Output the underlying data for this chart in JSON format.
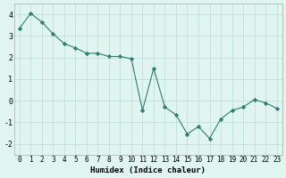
{
  "x": [
    0,
    1,
    2,
    3,
    4,
    5,
    6,
    7,
    8,
    9,
    10,
    11,
    12,
    13,
    14,
    15,
    16,
    17,
    18,
    19,
    20,
    21,
    22,
    23
  ],
  "y": [
    3.35,
    4.05,
    3.65,
    3.1,
    2.65,
    2.45,
    2.2,
    2.2,
    2.05,
    2.05,
    1.95,
    -0.45,
    1.5,
    -0.3,
    -0.65,
    -1.55,
    -1.2,
    -1.75,
    -0.85,
    -0.45,
    -0.3,
    0.05,
    -0.1,
    -0.35
  ],
  "line_color": "#2e7d6e",
  "marker": "D",
  "marker_size": 2.2,
  "bg_color": "#e0f5f0",
  "grid_color": "#b8ddd6",
  "xlabel": "Humidex (Indice chaleur)",
  "xlim": [
    -0.5,
    23.5
  ],
  "ylim": [
    -2.5,
    4.5
  ],
  "yticks": [
    -2,
    -1,
    0,
    1,
    2,
    3,
    4
  ],
  "xticks": [
    0,
    1,
    2,
    3,
    4,
    5,
    6,
    7,
    8,
    9,
    10,
    11,
    12,
    13,
    14,
    15,
    16,
    17,
    18,
    19,
    20,
    21,
    22,
    23
  ],
  "xlabel_fontsize": 6.5,
  "tick_fontsize": 5.5
}
